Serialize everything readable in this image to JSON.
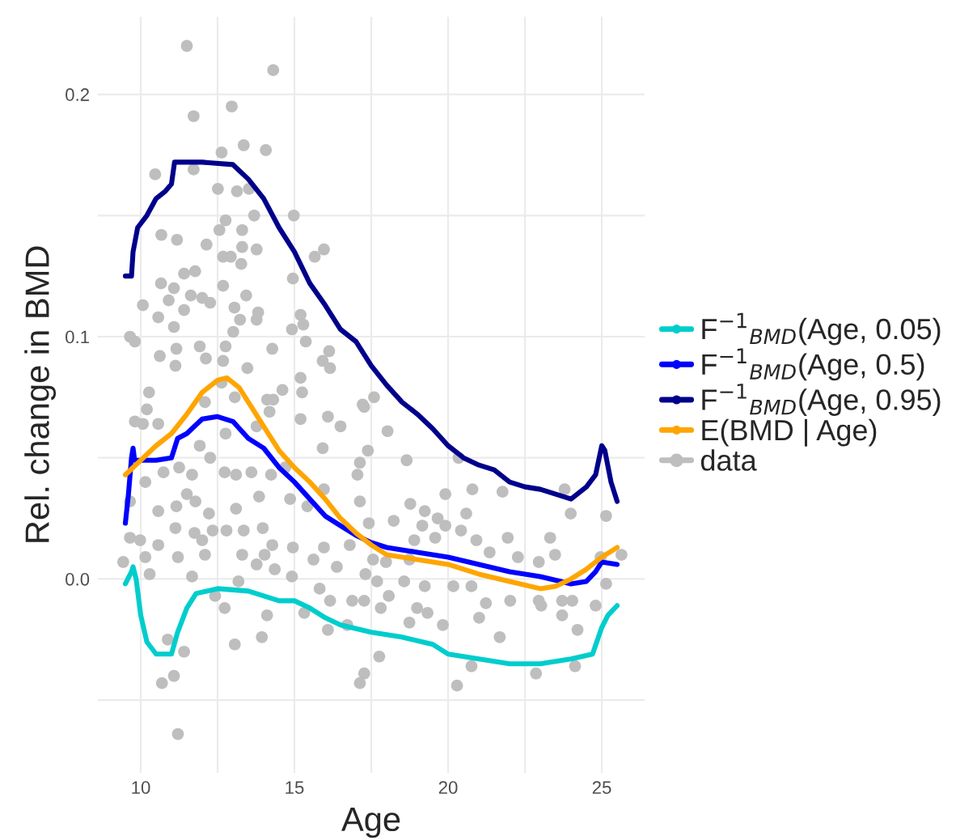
{
  "chart_data": {
    "type": "line",
    "xlabel": "Age",
    "ylabel": "Rel. change in BMD",
    "xlim": [
      8.6,
      26.4
    ],
    "ylim": [
      -0.08,
      0.232
    ],
    "xticks": [
      10,
      {
        "value": 12.5,
        "label": null
      },
      15,
      {
        "value": 17.5,
        "label": null
      },
      20,
      {
        "value": 22.5,
        "label": null
      },
      25
    ],
    "yticks": [
      {
        "value": -0.05,
        "label": null
      },
      {
        "value": 0,
        "label": "0.0"
      },
      {
        "value": 0.05,
        "label": null
      },
      0.1,
      {
        "value": 0.15,
        "label": null
      },
      0.2
    ],
    "grid": true,
    "legend": "right",
    "series": [
      {
        "name": "F$^{−1}$$_{BMD}$(Age, 0.05)",
        "color": "#00cdcd",
        "x": [
          9.5,
          9.7,
          9.75,
          9.85,
          10,
          10.2,
          10.5,
          11,
          11.2,
          11.5,
          11.8,
          12.5,
          13.5,
          14.5,
          15,
          15.5,
          16,
          16.5,
          17.5,
          18.5,
          19.5,
          20,
          21,
          22,
          23,
          24,
          24.7,
          25,
          25.2,
          25.5
        ],
        "values": [
          -0.002,
          0.003,
          0.005,
          0.0,
          -0.015,
          -0.026,
          -0.031,
          -0.031,
          -0.022,
          -0.012,
          -0.006,
          -0.004,
          -0.005,
          -0.009,
          -0.009,
          -0.012,
          -0.016,
          -0.019,
          -0.022,
          -0.024,
          -0.027,
          -0.031,
          -0.033,
          -0.035,
          -0.035,
          -0.033,
          -0.031,
          -0.02,
          -0.015,
          -0.011
        ]
      },
      {
        "name": "F$^{−1}$$_{BMD}$(Age, 0.5)",
        "color": "#0000ff",
        "x": [
          9.5,
          9.6,
          9.7,
          9.75,
          9.8,
          10.5,
          11,
          11.2,
          11.5,
          12,
          12.5,
          13,
          13.5,
          14,
          14.5,
          15,
          15.5,
          16,
          16.5,
          17,
          17.5,
          18,
          19,
          20,
          21,
          22,
          23,
          24,
          24.5,
          24.8,
          25,
          25.5
        ],
        "values": [
          0.023,
          0.035,
          0.05,
          0.054,
          0.049,
          0.049,
          0.05,
          0.058,
          0.06,
          0.066,
          0.067,
          0.065,
          0.058,
          0.054,
          0.046,
          0.04,
          0.033,
          0.026,
          0.022,
          0.018,
          0.015,
          0.013,
          0.011,
          0.009,
          0.006,
          0.003,
          0.001,
          -0.002,
          -0.001,
          0.003,
          0.007,
          0.006
        ]
      },
      {
        "name": "F$^{−1}$$_{BMD}$(Age, 0.95)",
        "color": "#00008b",
        "x": [
          9.5,
          9.7,
          9.75,
          9.9,
          10.2,
          10.5,
          10.8,
          11,
          11.1,
          12,
          13,
          13.5,
          14,
          14.5,
          15,
          15.5,
          16,
          16.5,
          17,
          17.5,
          18,
          18.5,
          19,
          19.5,
          20,
          20.5,
          21,
          21.5,
          22,
          22.5,
          23,
          23.5,
          24,
          24.5,
          24.8,
          25,
          25.1,
          25.3,
          25.5
        ],
        "values": [
          0.125,
          0.125,
          0.135,
          0.145,
          0.15,
          0.157,
          0.16,
          0.163,
          0.172,
          0.172,
          0.171,
          0.165,
          0.157,
          0.145,
          0.135,
          0.122,
          0.113,
          0.103,
          0.098,
          0.088,
          0.08,
          0.073,
          0.068,
          0.062,
          0.055,
          0.05,
          0.047,
          0.045,
          0.04,
          0.038,
          0.037,
          0.035,
          0.033,
          0.038,
          0.043,
          0.055,
          0.053,
          0.04,
          0.032
        ]
      },
      {
        "name": "E(BMD | Age)",
        "color": "#ffa500",
        "x": [
          9.5,
          10,
          10.5,
          11,
          11.5,
          12,
          12.5,
          12.8,
          13.2,
          13.5,
          14,
          14.5,
          15,
          15.5,
          16,
          16.5,
          17,
          17.5,
          18,
          19,
          20,
          21,
          22,
          23,
          23.5,
          24,
          24.5,
          25,
          25.5
        ],
        "values": [
          0.043,
          0.049,
          0.055,
          0.06,
          0.068,
          0.077,
          0.082,
          0.083,
          0.079,
          0.073,
          0.063,
          0.053,
          0.046,
          0.04,
          0.033,
          0.025,
          0.019,
          0.014,
          0.01,
          0.008,
          0.006,
          0.002,
          -0.001,
          -0.004,
          -0.003,
          0.0,
          0.004,
          0.009,
          0.013
        ]
      },
      {
        "name": "data",
        "type": "scatter",
        "color": "#bebebe",
        "x": [
          11.5,
          14.31,
          11.72,
          12.96,
          13.35,
          12.63,
          14.07,
          10.47,
          11.72,
          12.51,
          13.13,
          13.52,
          13.69,
          14.98,
          10.67,
          11.18,
          12.76,
          12.56,
          13.3,
          12.14,
          13.3,
          13.77,
          15.96,
          15.66,
          12.68,
          12.93,
          13.27,
          11.41,
          11.77,
          10.66,
          11.08,
          12.68,
          14.95,
          10.07,
          10.91,
          11.63,
          12.0,
          12.26,
          11.41,
          13.05,
          13.43,
          10.57,
          11.08,
          13.23,
          13.82,
          13.77,
          13.01,
          14.92,
          15.2,
          15.29,
          9.65,
          9.81,
          10.62,
          11.16,
          11.13,
          11.92,
          12.12,
          12.76,
          12.68,
          13.47,
          14.28,
          15.37,
          15.92,
          16.16,
          16.13,
          15.2,
          10.27,
          12.63,
          14.61,
          14.11,
          15.25,
          17.22,
          10.2,
          9.81,
          10.07,
          10.57,
          12.09,
          13.06,
          14.31,
          14.19,
          15.2,
          16.09,
          16.5,
          17.27,
          12.76,
          13.77,
          11.92,
          12.26,
          10.74,
          10.15,
          11.25,
          11.67,
          12.73,
          13.1,
          13.6,
          14.24,
          14.7,
          15.92,
          17.13,
          17.05,
          15.96,
          17.13,
          9.65,
          10.57,
          11.16,
          11.5,
          12.22,
          11.78,
          13.85,
          14.86,
          15.42,
          13.1,
          11.13,
          11.75,
          12.34,
          12.79,
          13.35,
          13.97,
          9.65,
          9.98,
          10.57,
          12.0,
          14.28,
          14.95,
          15.96,
          16.8,
          9.43,
          10.15,
          11.21,
          12.09,
          13.3,
          13.77,
          14.03,
          14.36,
          15.62,
          16.38,
          17.31,
          10.29,
          11.67,
          13.18,
          14.92,
          12.42,
          12.73,
          14.11,
          15.32,
          15.82,
          16.16,
          16.09,
          16.88,
          17.27,
          16.72,
          13.94,
          13.06,
          10.88,
          11.41,
          11.08,
          10.69,
          11.21,
          17.27,
          17.13,
          17.59,
          18.03,
          17.39,
          18.65,
          20.34,
          19.91,
          20.79,
          21.77,
          23.79,
          25.14,
          25.64,
          24.96,
          23.99,
          18.77,
          19.24,
          19.66,
          20.59,
          19.91,
          19.16,
          18.23,
          17.42,
          18.9,
          19.58,
          20.42,
          20.92,
          21.94,
          23.32,
          21.35,
          22.27,
          22.95,
          23.48,
          17.56,
          17.98,
          18.74,
          18.57,
          19.24,
          20.17,
          20.76,
          22.02,
          18.07,
          17.69,
          17.81,
          18.99,
          19.33,
          18.74,
          19.83,
          21.23,
          21.01,
          22.95,
          23.71,
          24.04,
          24.8,
          24.21,
          23.71,
          23.03,
          21.68,
          20.76,
          20.29,
          17.76,
          22.86,
          24.13,
          25.14
        ],
        "values": [
          0.22,
          0.21,
          0.191,
          0.195,
          0.179,
          0.176,
          0.177,
          0.167,
          0.169,
          0.161,
          0.16,
          0.161,
          0.15,
          0.15,
          0.142,
          0.14,
          0.148,
          0.144,
          0.144,
          0.138,
          0.137,
          0.136,
          0.136,
          0.133,
          0.133,
          0.133,
          0.13,
          0.126,
          0.127,
          0.122,
          0.12,
          0.121,
          0.124,
          0.113,
          0.115,
          0.117,
          0.116,
          0.114,
          0.111,
          0.112,
          0.117,
          0.108,
          0.104,
          0.107,
          0.11,
          0.107,
          0.102,
          0.103,
          0.109,
          0.105,
          0.1,
          0.098,
          0.092,
          0.095,
          0.088,
          0.096,
          0.091,
          0.096,
          0.09,
          0.087,
          0.095,
          0.098,
          0.09,
          0.087,
          0.094,
          0.083,
          0.077,
          0.081,
          0.078,
          0.074,
          0.077,
          0.072,
          0.07,
          0.065,
          0.064,
          0.064,
          0.073,
          0.075,
          0.074,
          0.069,
          0.066,
          0.067,
          0.063,
          0.071,
          0.06,
          0.063,
          0.055,
          0.05,
          0.044,
          0.04,
          0.046,
          0.043,
          0.044,
          0.043,
          0.044,
          0.043,
          0.046,
          0.054,
          0.048,
          0.043,
          0.037,
          0.032,
          0.032,
          0.028,
          0.03,
          0.035,
          0.027,
          0.032,
          0.034,
          0.033,
          0.03,
          0.029,
          0.021,
          0.019,
          0.02,
          0.02,
          0.02,
          0.021,
          0.017,
          0.016,
          0.014,
          0.016,
          0.014,
          0.013,
          0.013,
          0.014,
          0.007,
          0.009,
          0.009,
          0.01,
          0.01,
          0.006,
          0.01,
          0.004,
          0.008,
          0.005,
          0.002,
          0.002,
          0.001,
          -0.001,
          0.001,
          -0.007,
          -0.012,
          -0.015,
          -0.014,
          -0.004,
          -0.009,
          -0.021,
          -0.009,
          -0.009,
          -0.019,
          -0.024,
          -0.027,
          -0.025,
          -0.03,
          -0.04,
          -0.043,
          -0.064,
          -0.039,
          -0.043,
          0.075,
          0.061,
          0.053,
          0.049,
          0.05,
          0.035,
          0.037,
          0.036,
          0.037,
          0.026,
          0.01,
          0.009,
          0.027,
          0.031,
          0.028,
          0.025,
          0.027,
          0.022,
          0.022,
          0.024,
          0.023,
          0.016,
          0.017,
          0.02,
          0.016,
          0.017,
          0.017,
          0.011,
          0.009,
          0.007,
          0.01,
          0.008,
          0.007,
          0.008,
          -0.001,
          -0.003,
          -0.003,
          -0.003,
          -0.009,
          -0.007,
          -0.001,
          -0.012,
          -0.012,
          -0.014,
          -0.018,
          -0.019,
          -0.01,
          -0.016,
          -0.009,
          -0.009,
          -0.009,
          -0.011,
          -0.021,
          -0.015,
          -0.011,
          -0.024,
          -0.036,
          -0.044,
          -0.032,
          -0.039,
          -0.036,
          -0.002
        ]
      }
    ]
  }
}
